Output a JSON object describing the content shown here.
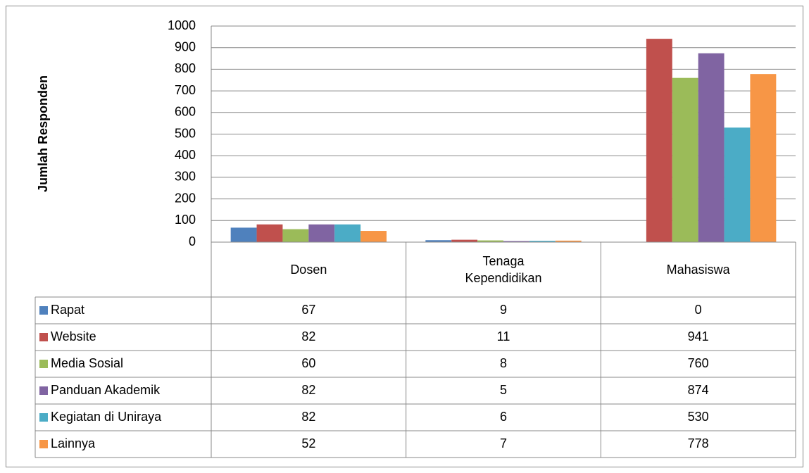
{
  "chart_data": {
    "type": "bar",
    "y_label": "Jumlah Responden",
    "categories": [
      "Dosen",
      "Tenaga Kependidikan",
      "Mahasiswa"
    ],
    "series": [
      {
        "name": "Rapat",
        "color": "#4f81bd",
        "values": [
          67,
          9,
          0
        ]
      },
      {
        "name": "Website",
        "color": "#c0504d",
        "values": [
          82,
          11,
          941
        ]
      },
      {
        "name": "Media Sosial",
        "color": "#9bbb59",
        "values": [
          60,
          8,
          760
        ]
      },
      {
        "name": "Panduan Akademik",
        "color": "#8064a2",
        "values": [
          82,
          5,
          874
        ]
      },
      {
        "name": "Kegiatan di Uniraya",
        "color": "#4bacc6",
        "values": [
          82,
          6,
          530
        ]
      },
      {
        "name": "Lainnya",
        "color": "#f79646",
        "values": [
          52,
          7,
          778
        ]
      }
    ],
    "ylim": [
      0,
      1000
    ],
    "yticks": [
      0,
      100,
      200,
      300,
      400,
      500,
      600,
      700,
      800,
      900,
      1000
    ],
    "grid": true
  }
}
